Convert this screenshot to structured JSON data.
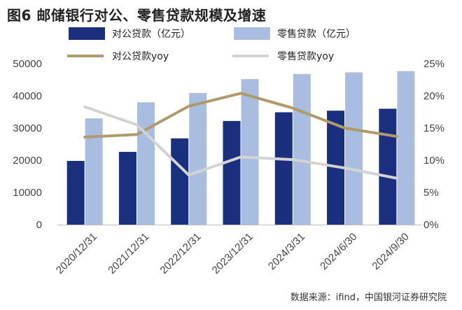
{
  "title": "图6  邮储银行对公、零售贷款规模及增速",
  "source": "数据来源：ifind，中国银河证券研究院",
  "chart_data": {
    "type": "bar+line",
    "categories": [
      "2020/12/31",
      "2021/12/31",
      "2022/12/31",
      "2023/12/31",
      "2024/3/31",
      "2024/6/30",
      "2024/9/30"
    ],
    "series": [
      {
        "name": "对公贷款（亿元）",
        "type": "bar",
        "axis": "left",
        "color": "#1a2f7e",
        "values": [
          19800,
          22600,
          26800,
          32200,
          34900,
          35400,
          36000
        ]
      },
      {
        "name": "零售贷款（亿元）",
        "type": "bar",
        "axis": "left",
        "color": "#a9bde0",
        "values": [
          33000,
          38000,
          40900,
          45200,
          46800,
          47300,
          47700
        ]
      },
      {
        "name": "对公贷款yoy",
        "type": "line",
        "axis": "right",
        "color": "#b09a6a",
        "values": [
          13.6,
          14.0,
          18.4,
          20.4,
          18.1,
          15.0,
          13.7
        ]
      },
      {
        "name": "零售贷款yoy",
        "type": "line",
        "axis": "right",
        "color": "#d3d3d3",
        "values": [
          18.3,
          15.5,
          7.7,
          10.5,
          10.1,
          8.8,
          7.2
        ]
      }
    ],
    "left_axis": {
      "min": 0,
      "max": 50000,
      "ticks": [
        "0",
        "10000",
        "20000",
        "30000",
        "40000",
        "50000"
      ]
    },
    "right_axis": {
      "min": 0,
      "max": 25,
      "ticks": [
        "0%",
        "5%",
        "10%",
        "15%",
        "20%",
        "25%"
      ]
    },
    "grid": false,
    "legend": "top"
  }
}
